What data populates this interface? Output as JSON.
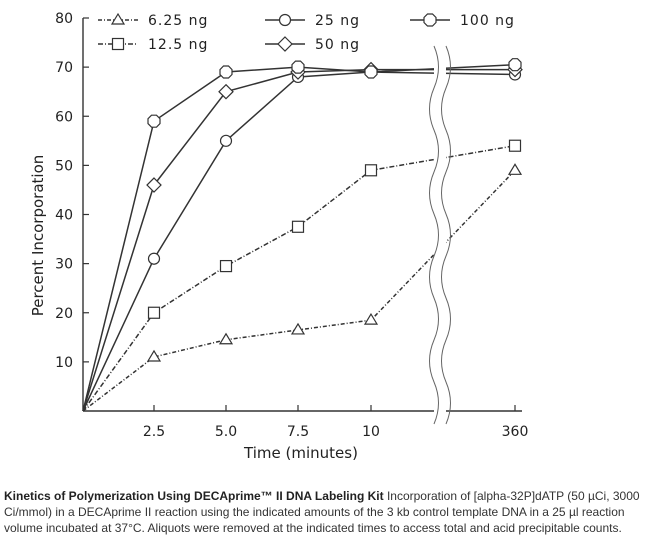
{
  "chart_data": {
    "type": "line",
    "xlabel": "Time (minutes)",
    "ylabel": "Percent Incorporation",
    "ylim": [
      0,
      80
    ],
    "yticks": [
      10,
      20,
      30,
      40,
      50,
      60,
      70,
      80
    ],
    "x_tick_labels": [
      "2.5",
      "5.0",
      "7.5",
      "10",
      "360"
    ],
    "x_break": "between 10 and 360 minutes",
    "x": [
      0,
      2.5,
      5.0,
      7.5,
      10,
      360
    ],
    "series": [
      {
        "name": "6.25 ng",
        "marker": "triangle",
        "dash": "4,2,1,2",
        "values": [
          0,
          11,
          14.5,
          16.5,
          18.5,
          49
        ]
      },
      {
        "name": "12.5 ng",
        "marker": "square",
        "dash": "5,2,1,2",
        "values": [
          0,
          20,
          29.5,
          37.5,
          49,
          54
        ]
      },
      {
        "name": "25 ng",
        "marker": "circle",
        "dash": "",
        "values": [
          0,
          31,
          55,
          68,
          69,
          68.5
        ]
      },
      {
        "name": "50 ng",
        "marker": "diamond",
        "dash": "",
        "values": [
          0,
          46,
          65,
          69,
          69.5,
          69.5
        ]
      },
      {
        "name": "100 ng",
        "marker": "octagon",
        "dash": "",
        "values": [
          0,
          59,
          69,
          70,
          69,
          70.5
        ]
      }
    ]
  },
  "caption": {
    "title": "Kinetics of Polymerization Using DECAprime™ II DNA Labeling Kit",
    "text": "Incorporation of [alpha-32P]dATP (50 µCi, 3000 Ci/mmol) in a DECAprime II reaction using the indicated amounts of the 3 kb control template DNA in a 25 µl reaction volume incubated at 37°C. Aliquots were removed at the indicated times to access total and acid precipitable counts."
  }
}
